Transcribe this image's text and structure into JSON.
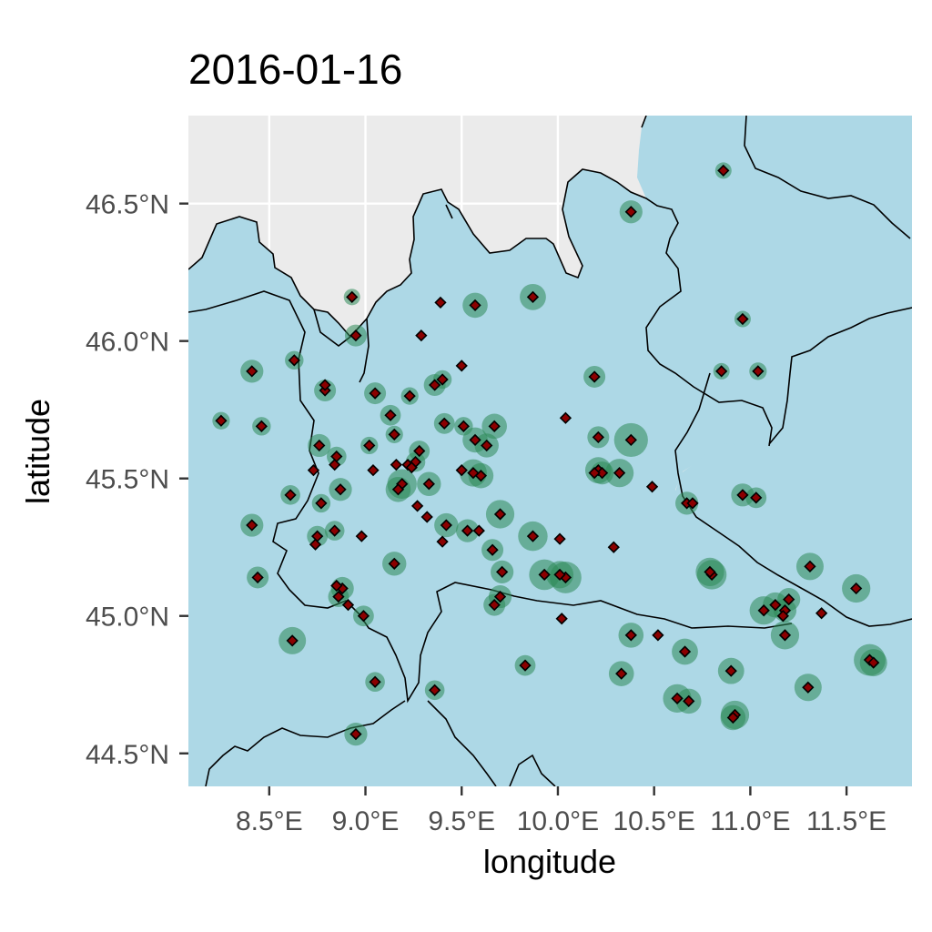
{
  "chart_data": {
    "type": "scatter",
    "title": "2016-01-16",
    "xlabel": "longitude",
    "ylabel": "latitude",
    "xlim": [
      8.08,
      11.84
    ],
    "ylim": [
      44.38,
      46.82
    ],
    "x_ticks": [
      {
        "value": 8.5,
        "label": "8.5°E"
      },
      {
        "value": 9.0,
        "label": "9.0°E"
      },
      {
        "value": 9.5,
        "label": "9.5°E"
      },
      {
        "value": 10.0,
        "label": "10.0°E"
      },
      {
        "value": 10.5,
        "label": "10.5°E"
      },
      {
        "value": 11.0,
        "label": "11.0°E"
      },
      {
        "value": 11.5,
        "label": "11.5°E"
      }
    ],
    "y_ticks": [
      {
        "value": 44.5,
        "label": "44.5°N"
      },
      {
        "value": 45.0,
        "label": "45.0°N"
      },
      {
        "value": 45.5,
        "label": "45.5°N"
      },
      {
        "value": 46.0,
        "label": "46.0°N"
      },
      {
        "value": 46.5,
        "label": "46.5°N"
      }
    ],
    "grid": true,
    "colors": {
      "panel_background": "#ebebeb",
      "region_fill": "#add8e6",
      "grid": "#ffffff",
      "boundary": "#000000",
      "station_marker": "#8b0000",
      "bubble": "#2e8b57"
    },
    "bubble_relative_sizes": [
      0.0,
      0.25,
      0.5,
      0.75,
      1.0
    ],
    "series": [
      {
        "values": [
          [
            10.86,
            46.62,
            0.0
          ],
          [
            10.38,
            46.47,
            0.3
          ],
          [
            9.57,
            46.13,
            0.4
          ],
          [
            9.87,
            46.16,
            0.45
          ],
          [
            8.93,
            46.16,
            0.0
          ],
          [
            8.95,
            46.02,
            0.25
          ],
          [
            10.96,
            46.08,
            0.0
          ],
          [
            10.19,
            45.87,
            0.25
          ],
          [
            10.85,
            45.89,
            0.0
          ],
          [
            11.04,
            45.89,
            0.05
          ],
          [
            8.41,
            45.89,
            0.3
          ],
          [
            8.63,
            45.93,
            0.1
          ],
          [
            8.25,
            45.71,
            0.05
          ],
          [
            8.46,
            45.69,
            0.1
          ],
          [
            8.79,
            45.82,
            0.25
          ],
          [
            9.05,
            45.81,
            0.25
          ],
          [
            9.23,
            45.8,
            0.05
          ],
          [
            9.36,
            45.84,
            0.25
          ],
          [
            9.4,
            45.86,
            0.1
          ],
          [
            9.13,
            45.73,
            0.2
          ],
          [
            9.41,
            45.7,
            0.2
          ],
          [
            9.51,
            45.69,
            0.1
          ],
          [
            9.67,
            45.69,
            0.4
          ],
          [
            8.76,
            45.62,
            0.3
          ],
          [
            8.85,
            45.58,
            0.15
          ],
          [
            9.02,
            45.62,
            0.05
          ],
          [
            9.15,
            45.66,
            0.05
          ],
          [
            9.57,
            45.64,
            0.4
          ],
          [
            9.63,
            45.62,
            0.35
          ],
          [
            10.21,
            45.65,
            0.25
          ],
          [
            10.38,
            45.64,
            0.8
          ],
          [
            9.28,
            45.6,
            0.2
          ],
          [
            9.26,
            45.56,
            0.15
          ],
          [
            8.87,
            45.46,
            0.3
          ],
          [
            9.19,
            45.48,
            0.6
          ],
          [
            9.17,
            45.46,
            0.4
          ],
          [
            9.33,
            45.48,
            0.35
          ],
          [
            9.56,
            45.52,
            0.5
          ],
          [
            9.6,
            45.51,
            0.4
          ],
          [
            10.21,
            45.53,
            0.45
          ],
          [
            10.23,
            45.52,
            0.3
          ],
          [
            10.32,
            45.52,
            0.55
          ],
          [
            10.67,
            45.41,
            0.3
          ],
          [
            10.96,
            45.44,
            0.3
          ],
          [
            11.03,
            45.43,
            0.2
          ],
          [
            8.61,
            45.44,
            0.15
          ],
          [
            8.77,
            45.41,
            0.1
          ],
          [
            8.41,
            45.33,
            0.3
          ],
          [
            8.75,
            45.29,
            0.2
          ],
          [
            8.84,
            45.31,
            0.15
          ],
          [
            9.42,
            45.33,
            0.35
          ],
          [
            9.53,
            45.31,
            0.3
          ],
          [
            9.7,
            45.37,
            0.55
          ],
          [
            9.87,
            45.29,
            0.6
          ],
          [
            9.66,
            45.24,
            0.25
          ],
          [
            9.15,
            45.19,
            0.35
          ],
          [
            9.71,
            45.16,
            0.3
          ],
          [
            9.93,
            45.15,
            0.65
          ],
          [
            10.04,
            45.14,
            0.7
          ],
          [
            10.01,
            45.15,
            0.5
          ],
          [
            10.8,
            45.15,
            0.6
          ],
          [
            10.79,
            45.16,
            0.55
          ],
          [
            11.31,
            45.18,
            0.5
          ],
          [
            11.55,
            45.1,
            0.55
          ],
          [
            8.44,
            45.14,
            0.25
          ],
          [
            8.88,
            45.1,
            0.3
          ],
          [
            8.86,
            45.07,
            0.2
          ],
          [
            9.7,
            45.07,
            0.3
          ],
          [
            9.67,
            45.04,
            0.25
          ],
          [
            11.07,
            45.02,
            0.55
          ],
          [
            11.13,
            45.04,
            0.4
          ],
          [
            11.2,
            45.06,
            0.3
          ],
          [
            11.18,
            45.02,
            0.3
          ],
          [
            8.99,
            45.0,
            0.2
          ],
          [
            11.18,
            44.93,
            0.55
          ],
          [
            10.38,
            44.93,
            0.4
          ],
          [
            8.62,
            44.91,
            0.5
          ],
          [
            9.83,
            44.82,
            0.2
          ],
          [
            10.66,
            44.87,
            0.45
          ],
          [
            11.62,
            44.84,
            0.7
          ],
          [
            11.64,
            44.83,
            0.5
          ],
          [
            10.33,
            44.79,
            0.4
          ],
          [
            10.9,
            44.8,
            0.45
          ],
          [
            9.05,
            44.76,
            0.15
          ],
          [
            9.36,
            44.73,
            0.15
          ],
          [
            10.62,
            44.7,
            0.55
          ],
          [
            10.68,
            44.69,
            0.4
          ],
          [
            11.3,
            44.74,
            0.5
          ],
          [
            10.92,
            44.64,
            0.55
          ],
          [
            10.91,
            44.63,
            0.4
          ],
          [
            8.95,
            44.57,
            0.3
          ]
        ]
      },
      {
        "values": [
          [
            9.39,
            46.14,
            0
          ],
          [
            9.29,
            46.02,
            0
          ],
          [
            9.5,
            45.91,
            0
          ],
          [
            8.79,
            45.84,
            0
          ],
          [
            10.04,
            45.72,
            0
          ],
          [
            9.16,
            45.55,
            0
          ],
          [
            9.22,
            45.55,
            0
          ],
          [
            9.24,
            45.54,
            0
          ],
          [
            8.73,
            45.53,
            0
          ],
          [
            8.84,
            45.55,
            0
          ],
          [
            9.04,
            45.53,
            0
          ],
          [
            9.5,
            45.53,
            0
          ],
          [
            10.19,
            45.52,
            0
          ],
          [
            10.49,
            45.47,
            0
          ],
          [
            10.7,
            45.41,
            0
          ],
          [
            9.27,
            45.4,
            0
          ],
          [
            9.32,
            45.36,
            0
          ],
          [
            9.59,
            45.31,
            0
          ],
          [
            8.74,
            45.26,
            0
          ],
          [
            8.98,
            45.29,
            0
          ],
          [
            9.4,
            45.27,
            0
          ],
          [
            10.01,
            45.28,
            0
          ],
          [
            10.29,
            45.25,
            0
          ],
          [
            8.85,
            45.11,
            0
          ],
          [
            8.91,
            45.04,
            0
          ],
          [
            10.02,
            44.99,
            0
          ],
          [
            11.17,
            45.0,
            0
          ],
          [
            11.37,
            45.01,
            0
          ],
          [
            10.52,
            44.93,
            0
          ]
        ]
      }
    ]
  }
}
